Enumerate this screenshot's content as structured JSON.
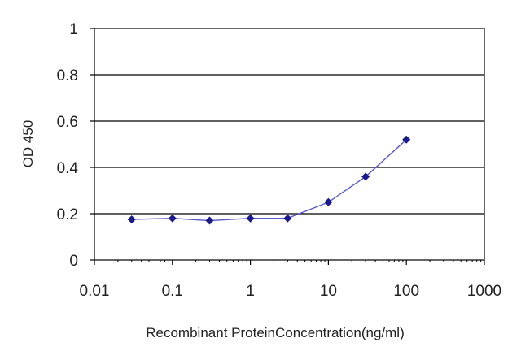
{
  "chart_data": {
    "type": "line",
    "title": "",
    "xlabel": "Recombinant ProteinConcentration(ng/ml)",
    "ylabel": "OD 450",
    "x_scale": "log",
    "xlim": [
      0.01,
      1000
    ],
    "ylim": [
      0,
      1
    ],
    "x_ticks": [
      "0.01",
      "0.1",
      "1",
      "10",
      "100",
      "1000"
    ],
    "x_tick_values": [
      0.01,
      0.1,
      1,
      10,
      100,
      1000
    ],
    "y_ticks": [
      "0",
      "0.2",
      "0.4",
      "0.6",
      "0.8",
      "1"
    ],
    "y_tick_values": [
      0,
      0.2,
      0.4,
      0.6,
      0.8,
      1
    ],
    "grid": "horizontal",
    "colors": {
      "series": "#1a1a8c",
      "line": "#5a5acb",
      "grid": "#000000"
    },
    "series": [
      {
        "x": [
          0.03,
          0.1,
          0.3,
          1,
          3,
          10,
          30,
          100
        ],
        "y": [
          0.175,
          0.18,
          0.17,
          0.18,
          0.18,
          0.25,
          0.36,
          0.52
        ]
      }
    ]
  }
}
